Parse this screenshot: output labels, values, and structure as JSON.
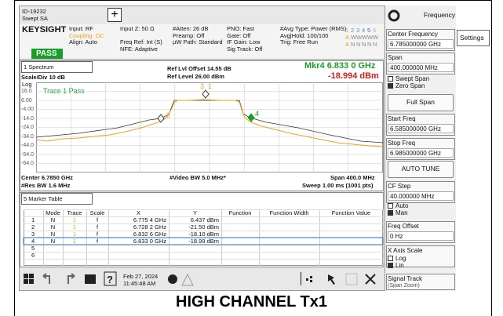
{
  "top_bar": {
    "id": "ID-19232",
    "mode": "Swept SA",
    "menu": "Frequency"
  },
  "settings": {
    "brand": "KEYSIGHT",
    "status": "PASS",
    "columns": [
      [
        "Input: RF",
        "Coupling: DC",
        "Align: Auto"
      ],
      [
        "Input Z: 50 Ω",
        "Freq Ref: Int (S)",
        "NFE: Adaptive"
      ],
      [
        "#Atten: 26 dB",
        "Preamp: Off",
        "µW Path: Standard"
      ],
      [
        "PNO: Fast",
        "Gate: Off",
        "IF Gain: Low",
        "Sig Track: Off"
      ],
      [
        "#Avg Type: Power (RMS)",
        "Avg|Hold: 100/100",
        "Trig: Free Run"
      ]
    ],
    "traces": {
      "numbers": [
        "1",
        "2",
        "3",
        "4",
        "5",
        "6"
      ],
      "types": [
        "A",
        "W",
        "W",
        "W",
        "W",
        "W"
      ],
      "detectors": [
        "A",
        "N",
        "N",
        "N",
        "N",
        "N"
      ]
    }
  },
  "spectrum": {
    "window": "1 Spectrum",
    "scale": "Scale/Div 10 dB",
    "scale_type": "Log",
    "ref_offset": "Ref Lvl Offset 14.55 dB",
    "ref_level": "Ref Level 26.00 dBm",
    "marker": "Mkr4  6.833 0 GHz",
    "marker_value": "-18.994 dBm",
    "trace_status": "Trace 1 Pass",
    "y_labels": [
      "16.0",
      "6.00",
      "-4.00",
      "-14.0",
      "-24.0",
      "-34.0",
      "-44.0",
      "-54.0",
      "-64.0"
    ],
    "marker_labels": [
      "1",
      "2",
      "3",
      "4"
    ],
    "footer": {
      "center": "Center 6.7850 GHz",
      "vbw": "#Video BW 5.0 MHz*",
      "span": "Span 400.0 MHz",
      "rbw": "#Res BW 1.6 MHz",
      "sweep": "Sweep 1.00 ms (1001 pts)"
    }
  },
  "marker_table": {
    "window": "5 Marker Table",
    "columns": [
      "Mode",
      "Trace",
      "Scale",
      "X",
      "Y",
      "Function",
      "Function Width",
      "Function Value"
    ],
    "rows": [
      {
        "number": "1",
        "cells": [
          "N",
          "1",
          "f",
          "6.775 4 GHz",
          "6.437 dBm"
        ]
      },
      {
        "number": "2",
        "cells": [
          "N",
          "1",
          "f",
          "6.728 2 GHz",
          "-21.50 dBm"
        ]
      },
      {
        "number": "3",
        "cells": [
          "N",
          "1",
          "f",
          "6.832 6 GHz",
          "-18.10 dBm"
        ]
      },
      {
        "number": "4",
        "cells": [
          "N",
          "1",
          "f",
          "6.833 0 GHz",
          "-18.99 dBm"
        ]
      },
      {
        "number": "5"
      },
      {
        "number": "6"
      }
    ]
  },
  "toolbar": {
    "date": "Feb 27, 2024",
    "time": "11:45:48 AM"
  },
  "panel": {
    "tab": "Settings",
    "center_label": "Center Frequency",
    "center_value": "6.785000000 GHz",
    "span_label": "Span",
    "span_value": "400.000000 MHz",
    "swept": "Swept Span",
    "zero": "Zero Span",
    "full": "Full Span",
    "start_label": "Start Freq",
    "start_value": "6.585000000 GHz",
    "stop_label": "Stop Freq",
    "stop_value": "6.985000000 GHz",
    "auto_tune": "AUTO TUNE",
    "cf_label": "CF Step",
    "cf_value": "40.000000 MHz",
    "auto": "Auto",
    "man": "Man",
    "offset_label": "Freq Offset",
    "offset_value": "0 Hz",
    "xscale_label": "X Axis Scale",
    "log": "Log",
    "lin": "Lin",
    "track_label": "Signal Track",
    "track_sub": "(Span Zoom)"
  },
  "caption": "HIGH CHANNEL Tx1"
}
